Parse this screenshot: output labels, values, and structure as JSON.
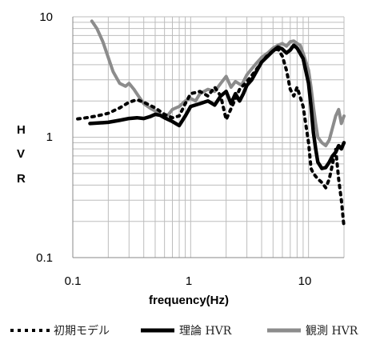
{
  "chart_data": {
    "type": "line",
    "xlabel": "frequency(Hz)",
    "ylabel": [
      "H",
      "V",
      "R"
    ],
    "xscale": "log",
    "yscale": "log",
    "xlim": [
      0.1,
      20
    ],
    "ylim": [
      0.1,
      10
    ],
    "x_ticks": [
      "0.1",
      "1",
      "10"
    ],
    "y_ticks": [
      "0.1",
      "1",
      "10"
    ],
    "grid": true,
    "legend_position": "bottom",
    "series": [
      {
        "name": "初期モデル",
        "style": "dotted",
        "color": "#000000",
        "points": [
          [
            0.11,
            1.42
          ],
          [
            0.13,
            1.45
          ],
          [
            0.16,
            1.5
          ],
          [
            0.2,
            1.58
          ],
          [
            0.25,
            1.75
          ],
          [
            0.3,
            1.95
          ],
          [
            0.35,
            2.05
          ],
          [
            0.4,
            1.95
          ],
          [
            0.5,
            1.75
          ],
          [
            0.6,
            1.55
          ],
          [
            0.7,
            1.45
          ],
          [
            0.8,
            1.5
          ],
          [
            0.9,
            1.9
          ],
          [
            1.0,
            2.3
          ],
          [
            1.2,
            2.4
          ],
          [
            1.4,
            2.2
          ],
          [
            1.6,
            2.6
          ],
          [
            1.8,
            2.2
          ],
          [
            2.0,
            1.4
          ],
          [
            2.3,
            1.9
          ],
          [
            2.6,
            2.5
          ],
          [
            3.0,
            2.9
          ],
          [
            3.5,
            3.5
          ],
          [
            4.0,
            4.2
          ],
          [
            4.5,
            4.8
          ],
          [
            5.0,
            5.2
          ],
          [
            5.5,
            5.4
          ],
          [
            6.0,
            4.7
          ],
          [
            6.5,
            3.6
          ],
          [
            7.0,
            2.5
          ],
          [
            7.5,
            2.2
          ],
          [
            8.0,
            2.6
          ],
          [
            9.0,
            1.8
          ],
          [
            10.0,
            0.9
          ],
          [
            10.5,
            0.55
          ],
          [
            11.0,
            0.5
          ],
          [
            12.0,
            0.45
          ],
          [
            13.0,
            0.42
          ],
          [
            14.0,
            0.38
          ],
          [
            15.0,
            0.45
          ],
          [
            16.0,
            0.6
          ],
          [
            17.0,
            0.8
          ],
          [
            18.0,
            0.45
          ],
          [
            19.0,
            0.3
          ],
          [
            20.0,
            0.18
          ]
        ]
      },
      {
        "name": "理論 HVR",
        "style": "solid-thick",
        "color": "#000000",
        "points": [
          [
            0.14,
            1.3
          ],
          [
            0.2,
            1.33
          ],
          [
            0.25,
            1.38
          ],
          [
            0.3,
            1.43
          ],
          [
            0.35,
            1.45
          ],
          [
            0.4,
            1.43
          ],
          [
            0.45,
            1.48
          ],
          [
            0.5,
            1.55
          ],
          [
            0.55,
            1.52
          ],
          [
            0.6,
            1.45
          ],
          [
            0.7,
            1.35
          ],
          [
            0.8,
            1.25
          ],
          [
            0.9,
            1.5
          ],
          [
            1.0,
            1.8
          ],
          [
            1.2,
            1.9
          ],
          [
            1.4,
            2.0
          ],
          [
            1.6,
            1.85
          ],
          [
            1.8,
            2.2
          ],
          [
            2.0,
            2.4
          ],
          [
            2.2,
            1.9
          ],
          [
            2.4,
            2.3
          ],
          [
            2.6,
            2.0
          ],
          [
            2.8,
            2.3
          ],
          [
            3.0,
            2.7
          ],
          [
            3.3,
            3.0
          ],
          [
            3.6,
            3.5
          ],
          [
            4.0,
            4.2
          ],
          [
            4.5,
            4.7
          ],
          [
            5.0,
            5.2
          ],
          [
            5.5,
            5.6
          ],
          [
            6.0,
            5.4
          ],
          [
            6.5,
            5.0
          ],
          [
            7.0,
            5.3
          ],
          [
            7.5,
            5.8
          ],
          [
            8.0,
            5.5
          ],
          [
            9.0,
            4.5
          ],
          [
            10.0,
            2.8
          ],
          [
            10.5,
            1.8
          ],
          [
            11.0,
            1.1
          ],
          [
            11.5,
            0.8
          ],
          [
            12.0,
            0.62
          ],
          [
            13.0,
            0.55
          ],
          [
            14.0,
            0.56
          ],
          [
            15.0,
            0.62
          ],
          [
            16.0,
            0.7
          ],
          [
            17.0,
            0.75
          ],
          [
            18.0,
            0.85
          ],
          [
            19.0,
            0.8
          ],
          [
            20.0,
            0.9
          ]
        ]
      },
      {
        "name": "観測 HVR",
        "style": "solid",
        "color": "#8c8c8c",
        "points": [
          [
            0.145,
            9.2
          ],
          [
            0.16,
            8.0
          ],
          [
            0.18,
            6.2
          ],
          [
            0.2,
            4.6
          ],
          [
            0.22,
            3.5
          ],
          [
            0.25,
            2.8
          ],
          [
            0.28,
            2.65
          ],
          [
            0.3,
            2.8
          ],
          [
            0.33,
            2.5
          ],
          [
            0.36,
            2.2
          ],
          [
            0.4,
            1.9
          ],
          [
            0.45,
            1.75
          ],
          [
            0.5,
            1.65
          ],
          [
            0.55,
            1.55
          ],
          [
            0.6,
            1.45
          ],
          [
            0.65,
            1.55
          ],
          [
            0.7,
            1.7
          ],
          [
            0.8,
            1.8
          ],
          [
            0.9,
            2.0
          ],
          [
            1.0,
            2.1
          ],
          [
            1.1,
            2.0
          ],
          [
            1.2,
            2.3
          ],
          [
            1.4,
            2.5
          ],
          [
            1.6,
            2.4
          ],
          [
            1.8,
            2.8
          ],
          [
            2.0,
            3.2
          ],
          [
            2.2,
            2.6
          ],
          [
            2.4,
            2.9
          ],
          [
            2.7,
            2.7
          ],
          [
            3.0,
            3.3
          ],
          [
            3.3,
            3.7
          ],
          [
            3.6,
            4.1
          ],
          [
            4.0,
            4.6
          ],
          [
            4.5,
            5.0
          ],
          [
            5.0,
            5.5
          ],
          [
            5.5,
            5.8
          ],
          [
            6.0,
            6.0
          ],
          [
            6.5,
            5.7
          ],
          [
            7.0,
            6.2
          ],
          [
            7.5,
            6.3
          ],
          [
            8.0,
            6.0
          ],
          [
            8.5,
            5.8
          ],
          [
            9.0,
            5.0
          ],
          [
            10.0,
            3.6
          ],
          [
            10.5,
            2.6
          ],
          [
            11.0,
            1.8
          ],
          [
            11.5,
            1.3
          ],
          [
            12.0,
            1.0
          ],
          [
            13.0,
            0.9
          ],
          [
            14.0,
            0.85
          ],
          [
            15.0,
            0.95
          ],
          [
            16.0,
            1.2
          ],
          [
            17.0,
            1.5
          ],
          [
            18.0,
            1.7
          ],
          [
            19.0,
            1.3
          ],
          [
            20.0,
            1.5
          ]
        ]
      }
    ]
  }
}
